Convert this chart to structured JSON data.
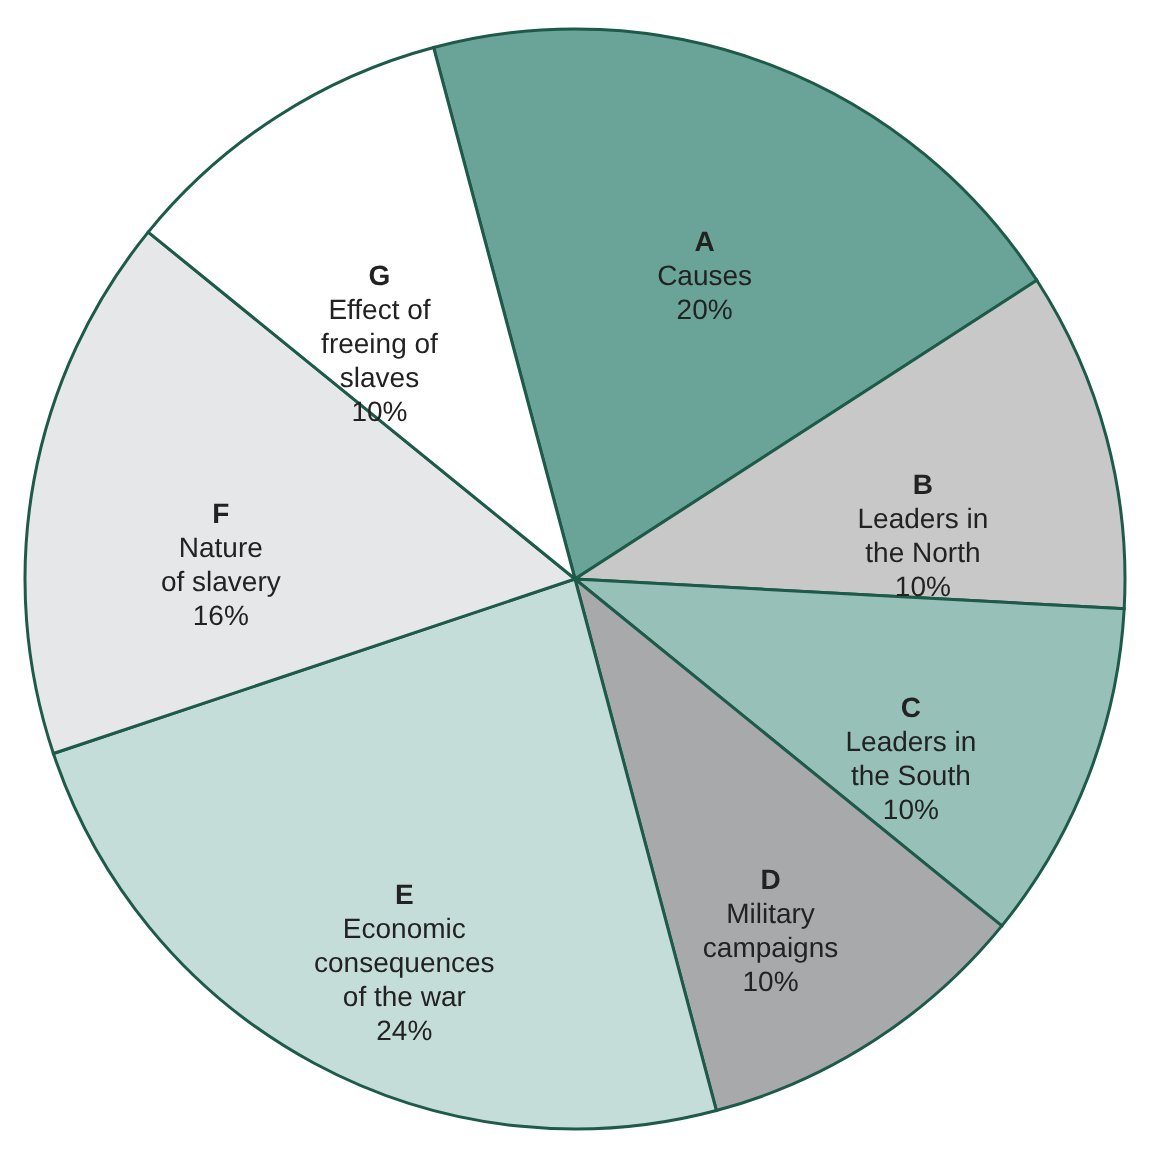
{
  "chart_data": {
    "type": "pie",
    "categories": [
      "A\nCauses",
      "B\nLeaders in\nthe North",
      "C\nLeaders in\nthe South",
      "D\nMilitary\ncampaigns",
      "E\nEconomic\nconsequences\nof the war",
      "F\nNature\nof slavery",
      "G\nEffect of\nfreeing of\nslaves"
    ],
    "values": [
      20,
      10,
      10,
      10,
      24,
      16,
      10
    ],
    "value_labels": [
      "20%",
      "10%",
      "10%",
      "10%",
      "24%",
      "16%",
      "10%"
    ],
    "colors": [
      "#6aa397",
      "#c8c8c8",
      "#96c0b8",
      "#a7a9ab",
      "#c5ddd9",
      "#e6e7e8",
      "#ffffff"
    ]
  }
}
